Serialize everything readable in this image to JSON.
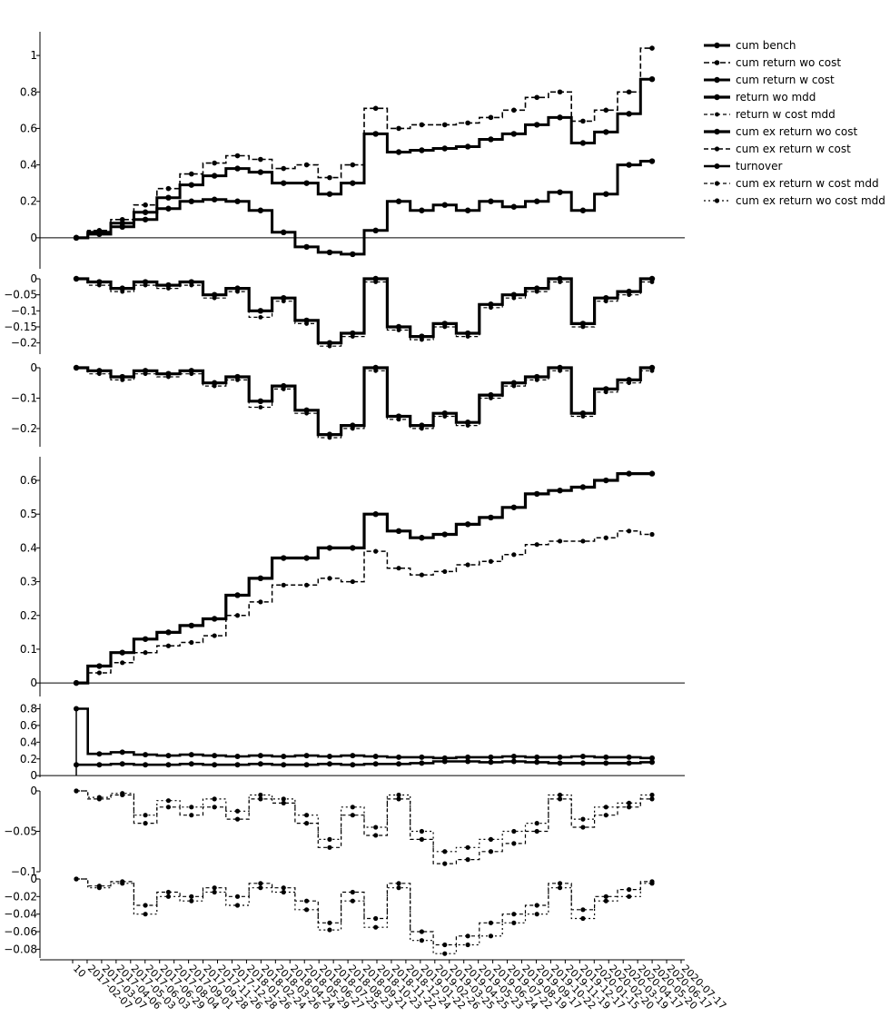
{
  "chart_data": {
    "type": "line",
    "x_tick_labels": [
      "10",
      "2017-02-07",
      "2017-03-07",
      "2017-04-06",
      "2017-05-03",
      "2017-06-03",
      "2017-06-29",
      "2017-08-04",
      "2017-09-01",
      "2017-09-28",
      "2017-11-26",
      "2017-12-28",
      "2018-01-26",
      "2018-02-24",
      "2018-03-26",
      "2018-04-24",
      "2018-05-29",
      "2018-06-27",
      "2018-07-25",
      "2018-08-23",
      "2018-09-21",
      "2018-10-23",
      "2018-11-22",
      "2018-12-24",
      "2019-01-22",
      "2019-02-26",
      "2019-03-25",
      "2019-04-25",
      "2019-05-23",
      "2019-06-24",
      "2019-07-22",
      "2019-08-19",
      "2019-09-17",
      "2019-10-22",
      "2019-11-19",
      "2019-12-17",
      "2020-01-15",
      "2020-02-20",
      "2020-03-19",
      "2020-04-17",
      "2020-05-20",
      "2020-06-17",
      "2020-07-17"
    ],
    "legend": {
      "position": "top-right",
      "entries": [
        "cum bench",
        "cum return wo cost",
        "cum return w cost",
        "return wo mdd",
        "return w cost mdd",
        "cum ex return wo cost",
        "cum ex return w cost",
        "turnover",
        "cum ex return w cost mdd",
        "cum ex return wo cost mdd"
      ]
    },
    "panels": [
      {
        "id": "panel1",
        "ylim": [
          -0.17,
          1.13
        ],
        "yticks": [
          0,
          0.2,
          0.4,
          0.6,
          0.8,
          1
        ],
        "ytick_labels": [
          "0",
          "0.2",
          "0.4",
          "0.6",
          "0.8",
          "1"
        ],
        "zero_line": true,
        "series": [
          {
            "name": "cum bench",
            "values": [
              0,
              0.02,
              0.06,
              0.1,
              0.16,
              0.2,
              0.21,
              0.2,
              0.15,
              0.03,
              -0.05,
              -0.08,
              -0.09,
              0.04,
              0.2,
              0.15,
              0.18,
              0.15,
              0.2,
              0.17,
              0.2,
              0.25,
              0.15,
              0.24,
              0.4,
              0.42
            ]
          },
          {
            "name": "cum return wo cost",
            "values": [
              0,
              0.04,
              0.1,
              0.18,
              0.27,
              0.35,
              0.41,
              0.45,
              0.43,
              0.38,
              0.4,
              0.33,
              0.4,
              0.71,
              0.6,
              0.62,
              0.62,
              0.63,
              0.66,
              0.7,
              0.77,
              0.8,
              0.64,
              0.7,
              0.8,
              1.04
            ]
          },
          {
            "name": "cum return w cost",
            "values": [
              0,
              0.03,
              0.08,
              0.14,
              0.22,
              0.29,
              0.34,
              0.38,
              0.36,
              0.3,
              0.3,
              0.24,
              0.3,
              0.57,
              0.47,
              0.48,
              0.49,
              0.5,
              0.54,
              0.57,
              0.62,
              0.66,
              0.52,
              0.58,
              0.68,
              0.87
            ]
          }
        ]
      },
      {
        "id": "panel2",
        "ylim": [
          -0.235,
          0
        ],
        "yticks": [
          0,
          -0.05,
          -0.1,
          -0.15,
          -0.2
        ],
        "ytick_labels": [
          "0",
          "−0.05",
          "−0.1",
          "−0.15",
          "−0.2"
        ],
        "series": [
          {
            "name": "return wo mdd",
            "values": [
              0,
              -0.01,
              -0.03,
              -0.01,
              -0.02,
              -0.01,
              -0.05,
              -0.03,
              -0.1,
              -0.06,
              -0.13,
              -0.2,
              -0.17,
              0,
              -0.15,
              -0.18,
              -0.14,
              -0.17,
              -0.08,
              -0.05,
              -0.03,
              0,
              -0.14,
              -0.06,
              -0.04,
              0
            ]
          },
          {
            "name": "return w cost mdd",
            "values": [
              0,
              -0.02,
              -0.04,
              -0.02,
              -0.03,
              -0.02,
              -0.06,
              -0.04,
              -0.12,
              -0.07,
              -0.14,
              -0.21,
              -0.18,
              -0.01,
              -0.16,
              -0.19,
              -0.15,
              -0.18,
              -0.09,
              -0.06,
              -0.04,
              -0.01,
              -0.15,
              -0.07,
              -0.05,
              -0.01
            ]
          }
        ]
      },
      {
        "id": "panel3",
        "ylim": [
          -0.26,
          0
        ],
        "yticks": [
          0,
          -0.1,
          -0.2
        ],
        "ytick_labels": [
          "0",
          "−0.1",
          "−0.2"
        ],
        "series": [
          {
            "name": "return wo mdd",
            "values": [
              0,
              -0.01,
              -0.03,
              -0.01,
              -0.02,
              -0.01,
              -0.05,
              -0.03,
              -0.11,
              -0.06,
              -0.14,
              -0.22,
              -0.19,
              0,
              -0.16,
              -0.19,
              -0.15,
              -0.18,
              -0.09,
              -0.05,
              -0.03,
              0,
              -0.15,
              -0.07,
              -0.04,
              0
            ]
          },
          {
            "name": "return w cost mdd",
            "values": [
              0,
              -0.02,
              -0.04,
              -0.02,
              -0.03,
              -0.02,
              -0.06,
              -0.04,
              -0.13,
              -0.07,
              -0.15,
              -0.23,
              -0.2,
              -0.01,
              -0.17,
              -0.2,
              -0.16,
              -0.19,
              -0.1,
              -0.06,
              -0.04,
              -0.01,
              -0.16,
              -0.08,
              -0.05,
              -0.01
            ]
          }
        ]
      },
      {
        "id": "panel4",
        "ylim": [
          -0.04,
          0.67
        ],
        "yticks": [
          0,
          0.1,
          0.2,
          0.3,
          0.4,
          0.5,
          0.6
        ],
        "ytick_labels": [
          "0",
          "0.1",
          "0.2",
          "0.3",
          "0.4",
          "0.5",
          "0.6"
        ],
        "zero_line": true,
        "series": [
          {
            "name": "cum ex return wo cost",
            "values": [
              0,
              0.05,
              0.09,
              0.13,
              0.15,
              0.17,
              0.19,
              0.26,
              0.31,
              0.37,
              0.37,
              0.4,
              0.4,
              0.5,
              0.45,
              0.43,
              0.44,
              0.47,
              0.49,
              0.52,
              0.56,
              0.57,
              0.58,
              0.6,
              0.62,
              0.62
            ]
          },
          {
            "name": "cum ex return w cost",
            "values": [
              0,
              0.03,
              0.06,
              0.09,
              0.11,
              0.12,
              0.14,
              0.2,
              0.24,
              0.29,
              0.29,
              0.31,
              0.3,
              0.39,
              0.34,
              0.32,
              0.33,
              0.35,
              0.36,
              0.38,
              0.41,
              0.42,
              0.42,
              0.43,
              0.45,
              0.44
            ]
          }
        ]
      },
      {
        "id": "panel5",
        "ylim": [
          -0.02,
          0.86
        ],
        "yticks": [
          0,
          0.2,
          0.4,
          0.6,
          0.8
        ],
        "ytick_labels": [
          "0",
          "0.2",
          "0.4",
          "0.6",
          "0.8"
        ],
        "zero_line": true,
        "series": [
          {
            "name": "turnover",
            "values": [
              0.8,
              0.26,
              0.28,
              0.25,
              0.24,
              0.25,
              0.24,
              0.23,
              0.24,
              0.23,
              0.24,
              0.23,
              0.24,
              0.23,
              0.22,
              0.22,
              0.21,
              0.22,
              0.22,
              0.23,
              0.22,
              0.22,
              0.23,
              0.22,
              0.22,
              0.21
            ]
          },
          {
            "name": "turnover",
            "values": [
              0.13,
              0.13,
              0.14,
              0.13,
              0.13,
              0.14,
              0.13,
              0.13,
              0.14,
              0.13,
              0.13,
              0.14,
              0.13,
              0.14,
              0.14,
              0.15,
              0.17,
              0.17,
              0.16,
              0.17,
              0.16,
              0.15,
              0.15,
              0.15,
              0.15,
              0.16
            ]
          }
        ]
      },
      {
        "id": "panel6",
        "ylim": [
          -0.1,
          0
        ],
        "yticks": [
          0,
          -0.05,
          -0.1
        ],
        "ytick_labels": [
          "0",
          "−0.05",
          "−0.1"
        ],
        "series": [
          {
            "name": "cum ex return w cost mdd",
            "values": [
              0,
              -0.01,
              -0.005,
              -0.04,
              -0.02,
              -0.03,
              -0.02,
              -0.035,
              -0.01,
              -0.015,
              -0.04,
              -0.07,
              -0.03,
              -0.055,
              -0.01,
              -0.06,
              -0.09,
              -0.085,
              -0.075,
              -0.065,
              -0.05,
              -0.01,
              -0.045,
              -0.03,
              -0.02,
              -0.01
            ]
          },
          {
            "name": "cum ex return wo cost mdd",
            "values": [
              0,
              -0.008,
              -0.003,
              -0.03,
              -0.012,
              -0.02,
              -0.01,
              -0.025,
              -0.005,
              -0.01,
              -0.03,
              -0.06,
              -0.02,
              -0.045,
              -0.005,
              -0.05,
              -0.075,
              -0.07,
              -0.06,
              -0.05,
              -0.04,
              -0.005,
              -0.035,
              -0.02,
              -0.015,
              -0.005
            ]
          }
        ]
      },
      {
        "id": "panel7",
        "ylim": [
          -0.09,
          0
        ],
        "yticks": [
          0,
          -0.02,
          -0.04,
          -0.06,
          -0.08
        ],
        "ytick_labels": [
          "0",
          "−0.02",
          "−0.04",
          "−0.06",
          "−0.08"
        ],
        "series": [
          {
            "name": "cum ex return wo cost mdd",
            "values": [
              0,
              -0.01,
              -0.005,
              -0.04,
              -0.02,
              -0.025,
              -0.015,
              -0.03,
              -0.01,
              -0.015,
              -0.035,
              -0.058,
              -0.025,
              -0.055,
              -0.01,
              -0.07,
              -0.085,
              -0.075,
              -0.065,
              -0.05,
              -0.04,
              -0.01,
              -0.045,
              -0.025,
              -0.02,
              -0.005
            ]
          },
          {
            "name": "cum ex return w cost mdd",
            "values": [
              0,
              -0.008,
              -0.003,
              -0.03,
              -0.015,
              -0.02,
              -0.01,
              -0.02,
              -0.005,
              -0.01,
              -0.025,
              -0.05,
              -0.015,
              -0.045,
              -0.005,
              -0.06,
              -0.075,
              -0.065,
              -0.05,
              -0.04,
              -0.03,
              -0.005,
              -0.035,
              -0.02,
              -0.012,
              -0.003
            ]
          }
        ]
      }
    ]
  }
}
